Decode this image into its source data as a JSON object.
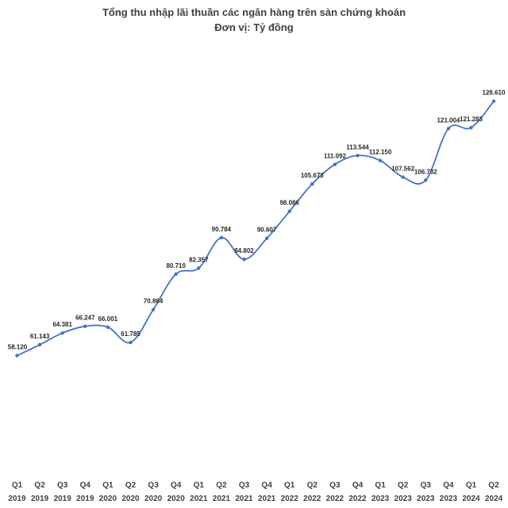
{
  "chart_data": {
    "type": "line",
    "title": "Tổng thu nhập lãi thuần các ngân hàng trên sàn chứng khoán",
    "subtitle": "Đơn vị: Tỷ đồng",
    "categories": [
      [
        "Q1",
        "2019"
      ],
      [
        "Q2",
        "2019"
      ],
      [
        "Q3",
        "2019"
      ],
      [
        "Q4",
        "2019"
      ],
      [
        "Q1",
        "2020"
      ],
      [
        "Q2",
        "2020"
      ],
      [
        "Q3",
        "2020"
      ],
      [
        "Q4",
        "2020"
      ],
      [
        "Q1",
        "2021"
      ],
      [
        "Q2",
        "2021"
      ],
      [
        "Q3",
        "2021"
      ],
      [
        "Q4",
        "2021"
      ],
      [
        "Q1",
        "2022"
      ],
      [
        "Q2",
        "2022"
      ],
      [
        "Q3",
        "2022"
      ],
      [
        "Q4",
        "2022"
      ],
      [
        "Q1",
        "2023"
      ],
      [
        "Q2",
        "2023"
      ],
      [
        "Q3",
        "2023"
      ],
      [
        "Q4",
        "2023"
      ],
      [
        "Q1",
        "2024"
      ],
      [
        "Q2",
        "2024"
      ]
    ],
    "values": [
      58120,
      61143,
      64381,
      66247,
      66001,
      61785,
      70864,
      80710,
      82357,
      90784,
      84802,
      90607,
      98086,
      105673,
      111092,
      113544,
      112150,
      107562,
      106732,
      121004,
      121283,
      128610
    ],
    "value_labels": [
      "58.120",
      "61.143",
      "64.381",
      "66.247",
      "66.001",
      "61.785",
      "70.864",
      "80.710",
      "82.357",
      "90.784",
      "84.802",
      "90.607",
      "98.086",
      "105.673",
      "111.092",
      "113.544",
      "112.150",
      "107.562",
      "106.732",
      "121.004",
      "121.283",
      "128.610"
    ],
    "ylim": [
      26000,
      136000
    ],
    "line_style": "smooth",
    "markers": true,
    "grid": false,
    "legend": "none",
    "line_color": "#4472C4",
    "label_color": "#262626",
    "tick_color": "#404040",
    "title_color": "#404040"
  }
}
